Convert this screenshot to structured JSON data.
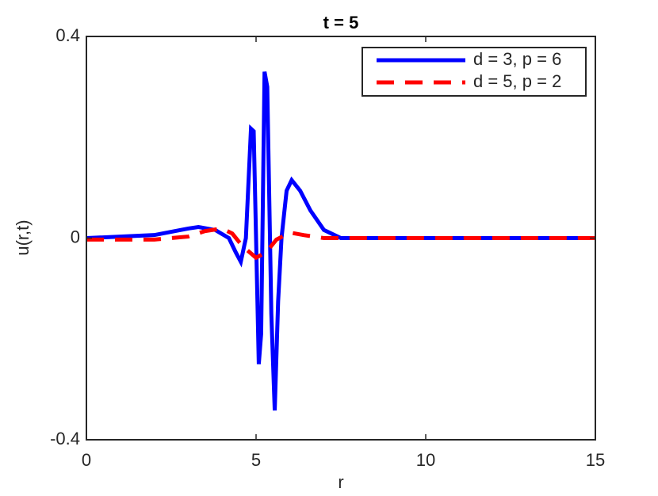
{
  "chart_data": {
    "type": "line",
    "title": "t = 5",
    "x_label": "r",
    "y_label": "u(r,t)",
    "xlim": [
      0,
      15
    ],
    "ylim": [
      -0.4,
      0.4
    ],
    "xticks": [
      0,
      5,
      10,
      15
    ],
    "yticks": [
      -0.4,
      0,
      0.4
    ],
    "legend": "northeast",
    "series": [
      {
        "name": "d = 3, p = 6",
        "color": "#0000ff",
        "style": "solid",
        "x": [
          0,
          2,
          3,
          3.3,
          3.8,
          4.2,
          4.4,
          4.55,
          4.7,
          4.85,
          4.93,
          5.0,
          5.08,
          5.15,
          5.25,
          5.33,
          5.45,
          5.55,
          5.65,
          5.75,
          5.9,
          6.05,
          6.3,
          6.6,
          7.0,
          7.5,
          8,
          10,
          12,
          15
        ],
        "values": [
          0,
          0.006,
          0.019,
          0.022,
          0.016,
          0,
          -0.028,
          -0.047,
          0,
          0.217,
          0.212,
          0,
          -0.25,
          -0.19,
          0.33,
          0.3,
          -0.15,
          -0.342,
          -0.126,
          0,
          0.094,
          0.115,
          0.094,
          0.055,
          0.016,
          0,
          0,
          0,
          0,
          0
        ]
      },
      {
        "name": "d = 5, p = 2",
        "color": "#ff0000",
        "style": "dashed",
        "x": [
          0,
          2,
          3,
          3.5,
          4.0,
          4.3,
          4.6,
          5.0,
          5.3,
          5.6,
          6.0,
          6.4,
          7.0,
          8,
          15
        ],
        "values": [
          -0.003,
          -0.003,
          0.003,
          0.014,
          0.019,
          0.009,
          -0.016,
          -0.039,
          -0.028,
          -0.003,
          0.011,
          0.006,
          0,
          0,
          0
        ]
      }
    ]
  }
}
